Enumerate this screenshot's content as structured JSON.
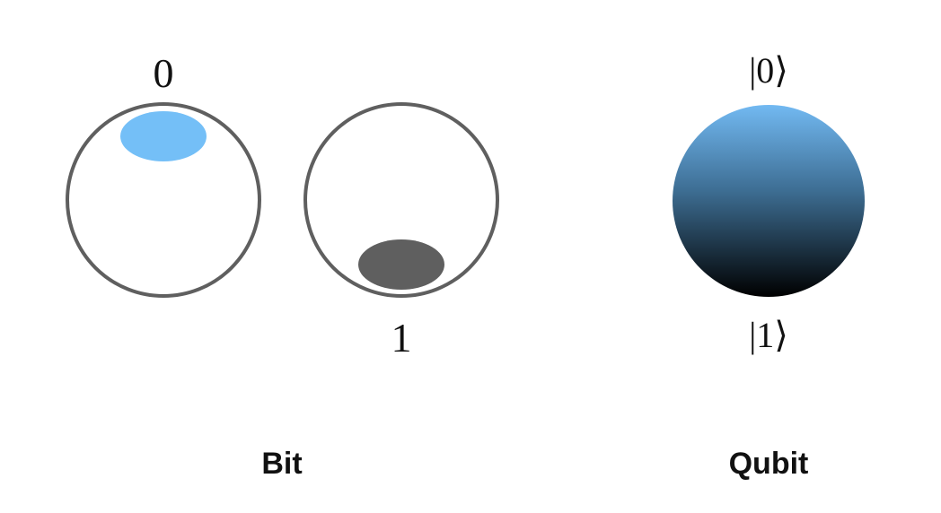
{
  "bit": {
    "state0_label": "0",
    "state1_label": "1",
    "caption": "Bit"
  },
  "qubit": {
    "ket0_label": "|0⟩",
    "ket1_label": "|1⟩",
    "caption": "Qubit"
  },
  "colors": {
    "outline": "#5f5f5f",
    "state0_fill": "#74bff7",
    "state1_fill": "#5f5f5f",
    "qubit_gradient_top": "#72b9f2",
    "qubit_gradient_bottom": "#000000"
  }
}
